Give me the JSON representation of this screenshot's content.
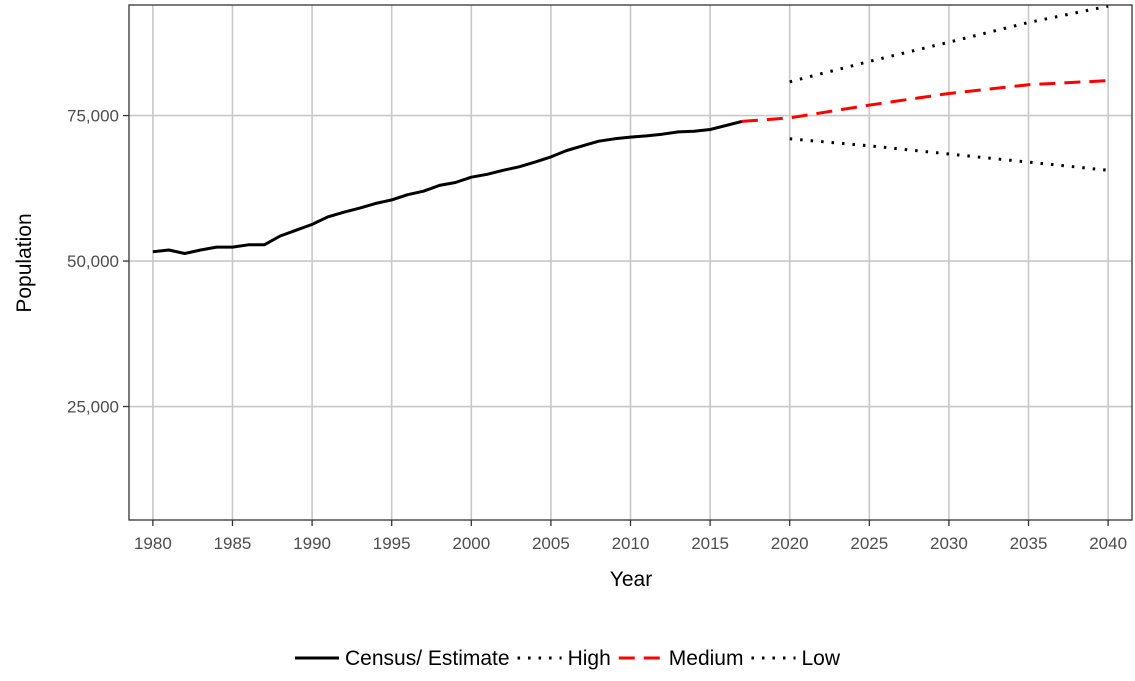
{
  "chart_data": {
    "type": "line",
    "title": "",
    "xlabel": "Year",
    "ylabel": "Population",
    "xlim": [
      1978.5,
      2041.5
    ],
    "ylim": [
      5500,
      94000
    ],
    "x_ticks": [
      1980,
      1985,
      1990,
      1995,
      2000,
      2005,
      2010,
      2015,
      2020,
      2025,
      2030,
      2035,
      2040
    ],
    "y_ticks": [
      25000,
      50000,
      75000
    ],
    "y_tick_labels": [
      "25,000",
      "50,000",
      "75,000"
    ],
    "grid": true,
    "legend_position": "bottom",
    "series": [
      {
        "name": "Census/ Estimate",
        "color": "#000000",
        "style": "solid",
        "x": [
          1980,
          1981,
          1982,
          1983,
          1984,
          1985,
          1986,
          1987,
          1988,
          1989,
          1990,
          1991,
          1992,
          1993,
          1994,
          1995,
          1996,
          1997,
          1998,
          1999,
          2000,
          2001,
          2002,
          2003,
          2004,
          2005,
          2006,
          2007,
          2008,
          2009,
          2010,
          2011,
          2012,
          2013,
          2014,
          2015,
          2016,
          2017
        ],
        "y": [
          51600,
          51900,
          51300,
          51900,
          52400,
          52400,
          52800,
          52800,
          54300,
          55300,
          56300,
          57600,
          58400,
          59100,
          59900,
          60500,
          61400,
          62000,
          63000,
          63500,
          64400,
          64900,
          65600,
          66200,
          67000,
          67900,
          69000,
          69800,
          70600,
          71000,
          71300,
          71500,
          71800,
          72200,
          72300,
          72600,
          73300,
          74000
        ]
      },
      {
        "name": "High",
        "color": "#000000",
        "style": "dotted",
        "x": [
          2020,
          2025,
          2030,
          2035,
          2040
        ],
        "y": [
          80800,
          84300,
          87600,
          91000,
          93800
        ]
      },
      {
        "name": "Medium",
        "color": "#ff0000",
        "style": "dashed",
        "x": [
          2017,
          2020,
          2025,
          2030,
          2035,
          2040
        ],
        "y": [
          74000,
          74600,
          76800,
          78800,
          80300,
          81000
        ]
      },
      {
        "name": "Low",
        "color": "#000000",
        "style": "dotted",
        "x": [
          2020,
          2025,
          2030,
          2035,
          2040
        ],
        "y": [
          71000,
          69800,
          68400,
          67000,
          65600
        ]
      }
    ]
  }
}
